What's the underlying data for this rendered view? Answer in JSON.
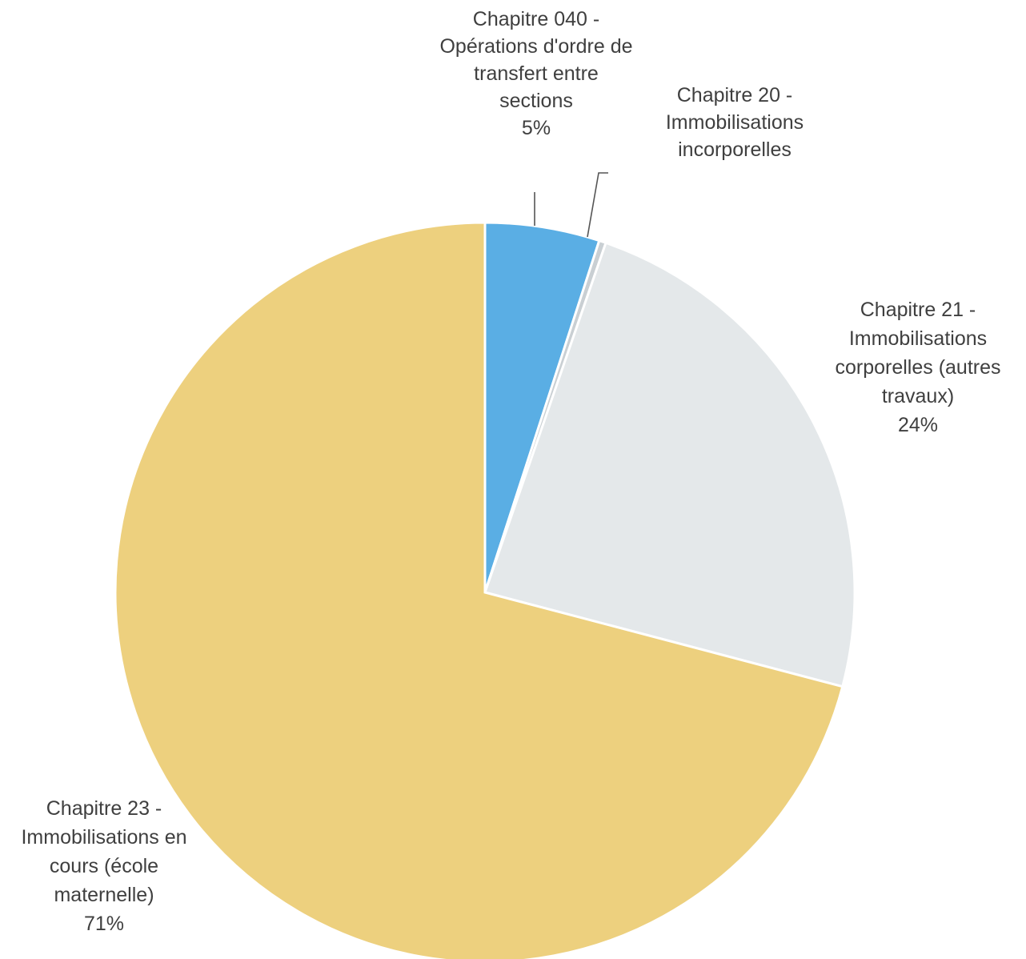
{
  "chart_data": {
    "type": "pie",
    "title": "",
    "legend": "none",
    "slices": [
      {
        "label": "Chapitre 040 - Opérations d'ordre de transfert entre sections",
        "label_lines": [
          "Chapitre 040 -",
          "Opérations d'ordre de",
          "transfert entre",
          "sections"
        ],
        "percent_text": "5%",
        "value": 5,
        "color": "#5aaee4"
      },
      {
        "label": "Chapitre 20 - Immobilisations incorporelles",
        "label_lines": [
          "Chapitre 20 -",
          "Immobilisations",
          "incorporelles"
        ],
        "percent_text": "",
        "value": 0.3,
        "color": "#c9cfd3"
      },
      {
        "label": "Chapitre 21 - Immobilisations corporelles (autres travaux)",
        "label_lines": [
          "Chapitre 21 -",
          "Immobilisations",
          "corporelles (autres",
          "travaux)"
        ],
        "percent_text": "24%",
        "value": 23.8,
        "color": "#e4e8ea"
      },
      {
        "label": "Chapitre 23 - Immobilisations en cours (école maternelle)",
        "label_lines": [
          "Chapitre 23 -",
          "Immobilisations en",
          "cours (école",
          "maternelle)"
        ],
        "percent_text": "71%",
        "value": 70.9,
        "color": "#edd07e"
      }
    ]
  }
}
